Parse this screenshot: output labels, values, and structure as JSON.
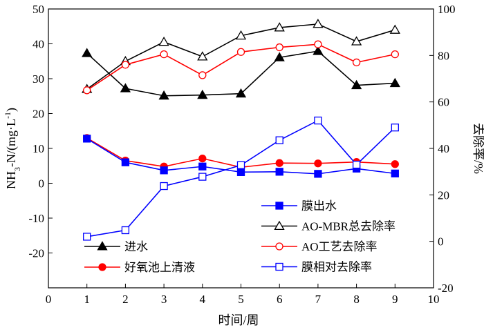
{
  "chart_data": {
    "type": "line",
    "xlabel": "时间/周",
    "ylabel_left": {
      "prefix": "NH",
      "sub": "3",
      "mid": "-N/(mg·L",
      "sup": "-1",
      "suffix": ")"
    },
    "ylabel_right": "去除率/%",
    "xlim": [
      0,
      10
    ],
    "ylim_left": [
      -30,
      50
    ],
    "ylim_right": [
      -20,
      100
    ],
    "x_ticks": [
      "0",
      "1",
      "2",
      "3",
      "4",
      "5",
      "6",
      "7",
      "8",
      "9",
      "10"
    ],
    "y_left_ticks": [
      "-20",
      "-10",
      "0",
      "10",
      "20",
      "30",
      "40",
      "50"
    ],
    "y_right_ticks": [
      "-20",
      "0",
      "20",
      "40",
      "60",
      "80",
      "100"
    ],
    "x": [
      1,
      2,
      3,
      4,
      5,
      6,
      7,
      8,
      9
    ],
    "series": [
      {
        "name": "进水",
        "axis": "left",
        "color": "#000000",
        "marker": "triangle-filled",
        "values": [
          37.3,
          27.2,
          25.1,
          25.3,
          25.7,
          36.1,
          37.9,
          28.1,
          28.7
        ]
      },
      {
        "name": "好氧池上清液",
        "axis": "left",
        "color": "#ff0000",
        "marker": "circle-filled",
        "values": [
          13.0,
          6.5,
          4.8,
          7.1,
          4.6,
          5.8,
          5.7,
          6.1,
          5.5
        ]
      },
      {
        "name": "膜出水",
        "axis": "left",
        "color": "#0000ff",
        "marker": "square-filled",
        "values": [
          12.8,
          6.0,
          3.7,
          4.8,
          3.2,
          3.3,
          2.7,
          4.2,
          2.8
        ]
      },
      {
        "name": "AO-MBR总去除率",
        "axis": "right",
        "color": "#000000",
        "marker": "triangle-open",
        "values": [
          65.5,
          77.5,
          85.8,
          79.5,
          88.5,
          92.0,
          93.5,
          86.0,
          91.0
        ]
      },
      {
        "name": "AO工艺去除率",
        "axis": "right",
        "color": "#ff0000",
        "marker": "circle-open",
        "values": [
          65.0,
          76.0,
          80.5,
          71.5,
          81.5,
          83.5,
          84.8,
          77.0,
          80.5
        ]
      },
      {
        "name": "膜相对去除率",
        "axis": "right",
        "color": "#0000ff",
        "marker": "square-open",
        "values": [
          2.0,
          4.8,
          23.8,
          27.8,
          32.8,
          43.5,
          52.0,
          33.0,
          49.0
        ]
      }
    ],
    "legends": [
      {
        "placement": "bottom-left",
        "entries": [
          "进水",
          "好氧池上清液"
        ]
      },
      {
        "placement": "bottom-right",
        "entries": [
          "膜出水",
          "AO-MBR总去除率",
          "AO工艺去除率",
          "膜相对去除率"
        ]
      }
    ]
  }
}
